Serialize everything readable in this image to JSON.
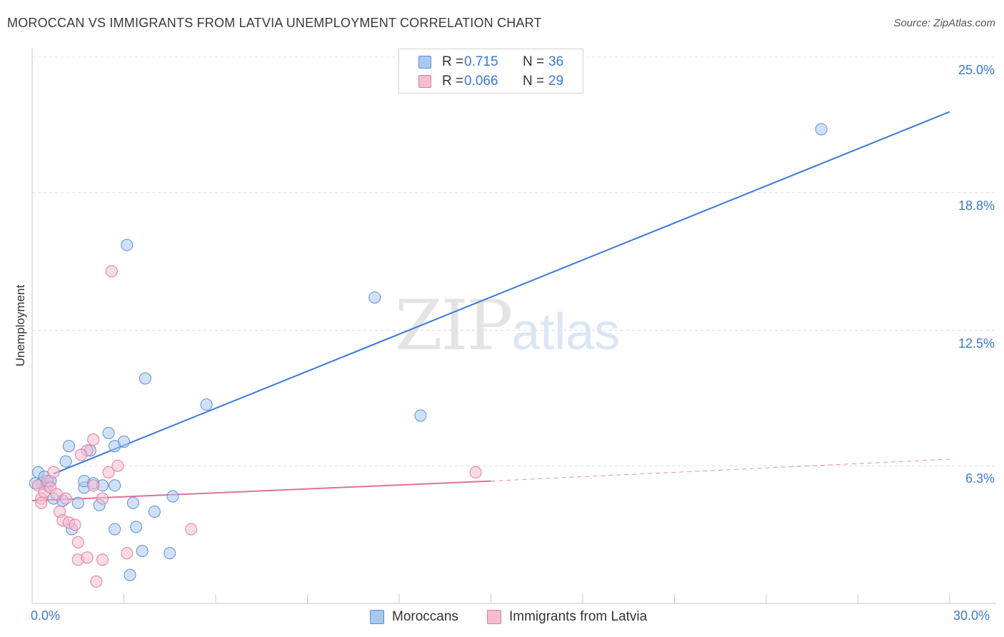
{
  "header": {
    "title": "MOROCCAN VS IMMIGRANTS FROM LATVIA UNEMPLOYMENT CORRELATION CHART",
    "source": "Source: ZipAtlas.com"
  },
  "watermark": {
    "part1": "ZIP",
    "part2": "atlas"
  },
  "legend": {
    "rows": [
      {
        "r_label": "R =",
        "r_value": "0.715",
        "n_label": "N =",
        "n_value": "36",
        "color": "#a9c8f0",
        "stroke": "#5a8fd8"
      },
      {
        "r_label": "R =",
        "r_value": "0.066",
        "n_label": "N =",
        "n_value": "29",
        "color": "#f6bcd0",
        "stroke": "#e07aa0"
      }
    ]
  },
  "bottom_legend": {
    "items": [
      {
        "label": "Moroccans",
        "color": "#a9c8f0",
        "stroke": "#5a8fd8"
      },
      {
        "label": "Immigrants from Latvia",
        "color": "#f6bcd0",
        "stroke": "#e07aa0"
      }
    ]
  },
  "chart_data": {
    "type": "scatter",
    "title": "MOROCCAN VS IMMIGRANTS FROM LATVIA UNEMPLOYMENT CORRELATION CHART",
    "xlabel": "",
    "ylabel": "Unemployment",
    "xlim": [
      0,
      30
    ],
    "ylim": [
      0,
      25
    ],
    "x_tick_labels": [
      "0.0%",
      "30.0%"
    ],
    "y_ticks": [
      6.3,
      12.5,
      18.8,
      25.0
    ],
    "y_tick_labels": [
      "6.3%",
      "12.5%",
      "18.8%",
      "25.0%"
    ],
    "grid": true,
    "legend_position": "top-center",
    "series": [
      {
        "name": "Moroccans",
        "color": "#3b78d8",
        "fill": "#a9c8f0",
        "R": 0.715,
        "N": 36,
        "points": [
          [
            0.2,
            6.0
          ],
          [
            0.3,
            5.5
          ],
          [
            0.4,
            5.8
          ],
          [
            0.5,
            5.4
          ],
          [
            0.6,
            5.6
          ],
          [
            0.7,
            4.8
          ],
          [
            1.0,
            4.7
          ],
          [
            1.1,
            6.5
          ],
          [
            1.2,
            7.2
          ],
          [
            1.3,
            3.4
          ],
          [
            1.5,
            4.6
          ],
          [
            1.7,
            5.3
          ],
          [
            1.7,
            5.6
          ],
          [
            1.9,
            7.0
          ],
          [
            2.0,
            5.5
          ],
          [
            2.2,
            4.5
          ],
          [
            2.3,
            5.4
          ],
          [
            2.5,
            7.8
          ],
          [
            2.7,
            5.4
          ],
          [
            2.7,
            3.4
          ],
          [
            2.7,
            7.2
          ],
          [
            3.0,
            7.4
          ],
          [
            3.1,
            16.4
          ],
          [
            3.2,
            1.3
          ],
          [
            3.3,
            4.6
          ],
          [
            3.4,
            3.5
          ],
          [
            3.6,
            2.4
          ],
          [
            3.7,
            10.3
          ],
          [
            4.0,
            4.2
          ],
          [
            4.5,
            2.3
          ],
          [
            4.6,
            4.9
          ],
          [
            5.7,
            9.1
          ],
          [
            11.2,
            14.0
          ],
          [
            12.7,
            8.6
          ],
          [
            25.8,
            21.7
          ],
          [
            0.1,
            5.5
          ]
        ],
        "trend": {
          "x": [
            0,
            30
          ],
          "y": [
            4.2,
            22.5
          ]
        }
      },
      {
        "name": "Immigrants from Latvia",
        "color": "#e0709a",
        "fill": "#f6bcd0",
        "R": 0.066,
        "N": 29,
        "points": [
          [
            0.2,
            5.4
          ],
          [
            0.3,
            4.8
          ],
          [
            0.4,
            5.1
          ],
          [
            0.5,
            5.6
          ],
          [
            0.6,
            5.3
          ],
          [
            0.7,
            6.0
          ],
          [
            0.8,
            5.0
          ],
          [
            0.9,
            4.2
          ],
          [
            1.0,
            3.8
          ],
          [
            1.1,
            4.8
          ],
          [
            1.2,
            3.7
          ],
          [
            1.4,
            3.6
          ],
          [
            1.5,
            2.8
          ],
          [
            1.5,
            2.0
          ],
          [
            1.8,
            2.1
          ],
          [
            1.8,
            7.0
          ],
          [
            2.0,
            7.5
          ],
          [
            2.0,
            5.4
          ],
          [
            2.1,
            1.0
          ],
          [
            2.3,
            4.8
          ],
          [
            2.3,
            2.0
          ],
          [
            2.5,
            6.0
          ],
          [
            2.6,
            15.2
          ],
          [
            2.8,
            6.3
          ],
          [
            3.1,
            2.3
          ],
          [
            5.2,
            3.4
          ],
          [
            14.5,
            6.0
          ],
          [
            0.3,
            4.6
          ],
          [
            1.6,
            6.8
          ]
        ],
        "trend": {
          "x": [
            0,
            15
          ],
          "y": [
            4.7,
            5.6
          ]
        },
        "trend_extension": {
          "x": [
            15,
            30
          ],
          "y": [
            5.6,
            6.6
          ]
        }
      }
    ]
  }
}
